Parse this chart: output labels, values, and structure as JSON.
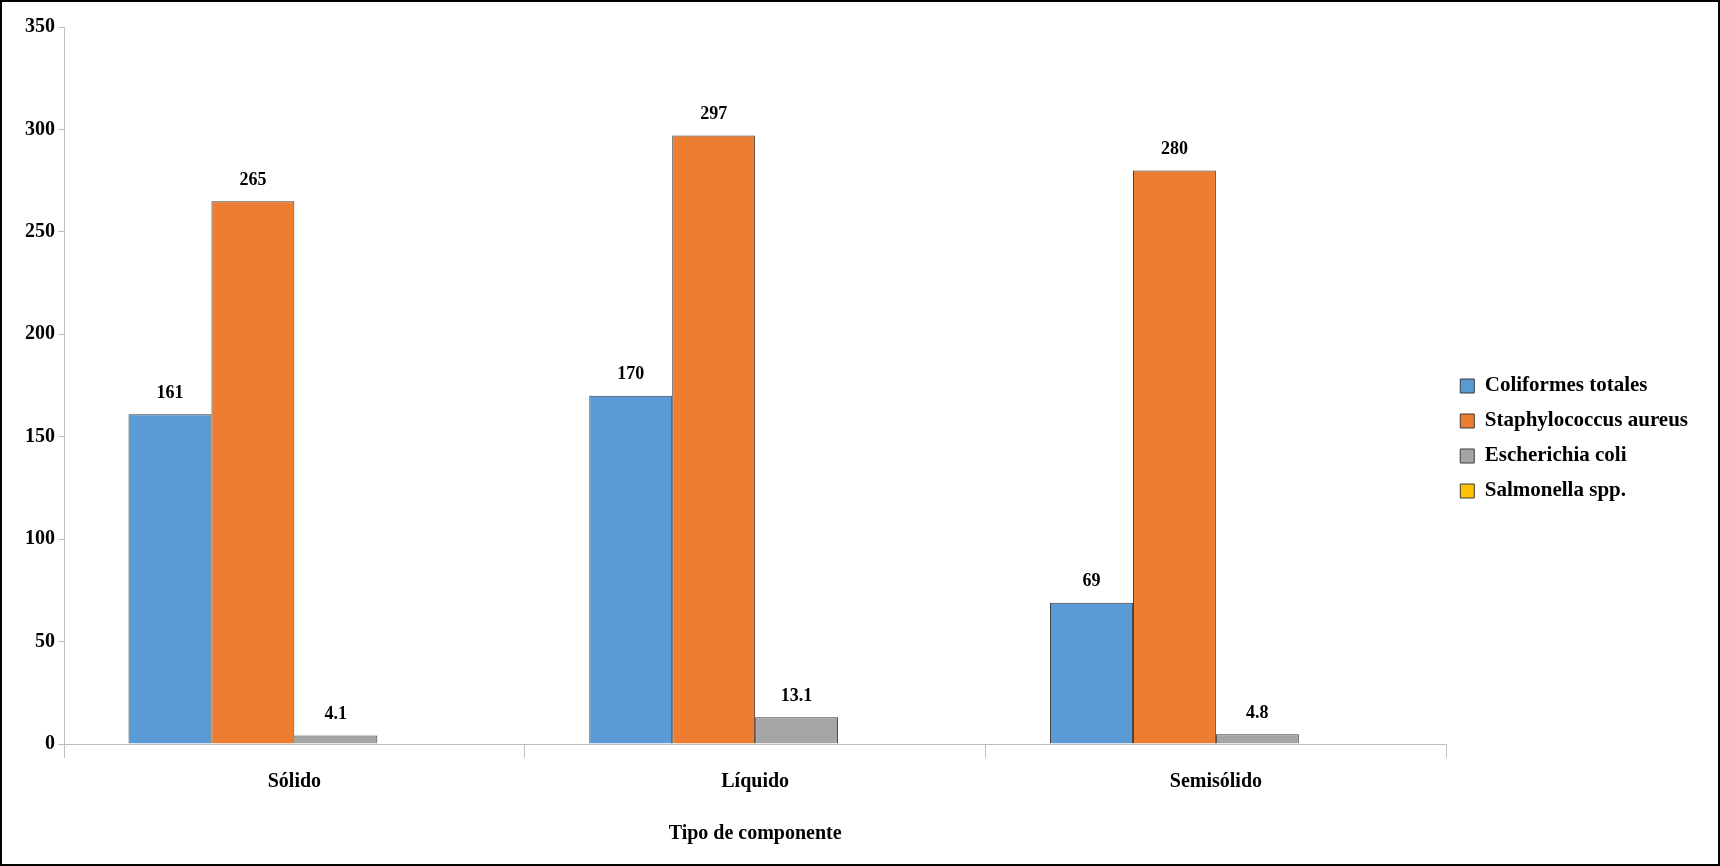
{
  "chart_data": {
    "type": "bar",
    "xlabel": "Tipo de componente",
    "categories": [
      "Sólido",
      "Líquido",
      "Semisólido"
    ],
    "series": [
      {
        "name": "Coliformes totales",
        "color": "#5b9bd5",
        "values": [
          161,
          170,
          69
        ],
        "value_labels": [
          "161",
          "170",
          "69"
        ]
      },
      {
        "name": "Staphylococcus aureus",
        "color": "#ed7d31",
        "values": [
          265,
          297,
          280
        ],
        "value_labels": [
          "265",
          "297",
          "280"
        ]
      },
      {
        "name": "Escherichia coli",
        "color": "#a5a5a5",
        "values": [
          4.1,
          13.1,
          4.8
        ],
        "value_labels": [
          "4.1",
          "13.1",
          "4.8"
        ]
      },
      {
        "name": "Salmonella spp.",
        "color": "#ffc000",
        "values": [
          0,
          0,
          0
        ],
        "value_labels": [
          null,
          null,
          null
        ]
      }
    ],
    "ylim": [
      0,
      350
    ],
    "yticks": [
      0,
      50,
      100,
      150,
      200,
      250,
      300,
      350
    ],
    "grid": false,
    "legend": "right"
  }
}
